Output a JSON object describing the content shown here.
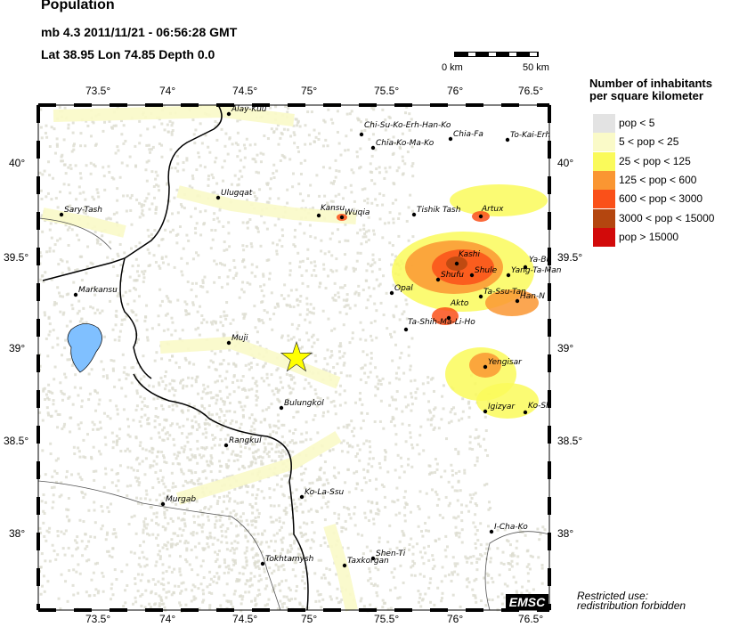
{
  "header": {
    "title": "Population",
    "event": "mb 4.3  2011/11/21 - 06:56:28 GMT",
    "location": "Lat 38.95    Lon  74.85    Depth  0.0"
  },
  "scale": {
    "left": "0 km",
    "right": "50 km"
  },
  "legend": {
    "title_line1": "Number of inhabitants",
    "title_line2": "per square kilometer",
    "items": [
      {
        "label": "pop < 5",
        "color": "#e3e3e3"
      },
      {
        "label": "5 < pop < 25",
        "color": "#fafac8"
      },
      {
        "label": "25 < pop < 125",
        "color": "#fafa5a"
      },
      {
        "label": "125 < pop < 600",
        "color": "#fa9632"
      },
      {
        "label": "600 < pop < 3000",
        "color": "#fa5019"
      },
      {
        "label": "3000 < pop < 15000",
        "color": "#b4460f"
      },
      {
        "label": "pop > 15000",
        "color": "#d20a0a"
      }
    ]
  },
  "axes": {
    "lon": [
      "73.5°",
      "74°",
      "74.5°",
      "75°",
      "75.5°",
      "76°",
      "76.5°"
    ],
    "lat": [
      "40°",
      "39.5°",
      "39°",
      "38.5°",
      "38°"
    ]
  },
  "cities": [
    "Alay-Kuu",
    "Chi-Su-Ko-Erh-Han-Ko",
    "Chia-Fa",
    "To-Kai-Erh",
    "Chia-Ko-Ma-Ko",
    "Ulugqat",
    "Kansu",
    "Wuqia",
    "Tishik Tash",
    "Artux",
    "Sary-Tash",
    "Kashi",
    "Ya-Bu",
    "Shule",
    "Yang-Ta-Man",
    "Shufu",
    "Opal",
    "Ta-Ssu-Tan",
    "Han-N",
    "Markansu",
    "Akto",
    "Ta-Shih-Ma-Li-Ho",
    "Muji",
    "Yengisar",
    "Bulungkol",
    "Igizyar",
    "Ko-Sh",
    "Rangkul",
    "Ko-La-Ssu",
    "Murgab",
    "I-Cha-Ko",
    "Shen-Ti",
    "Tokhtamysh",
    "Taxkorgan"
  ],
  "epicenter": {
    "color": "#ffff00"
  },
  "logo": "EMSC",
  "footer": {
    "line1": "Restricted use:",
    "line2": "redistribution forbidden"
  }
}
